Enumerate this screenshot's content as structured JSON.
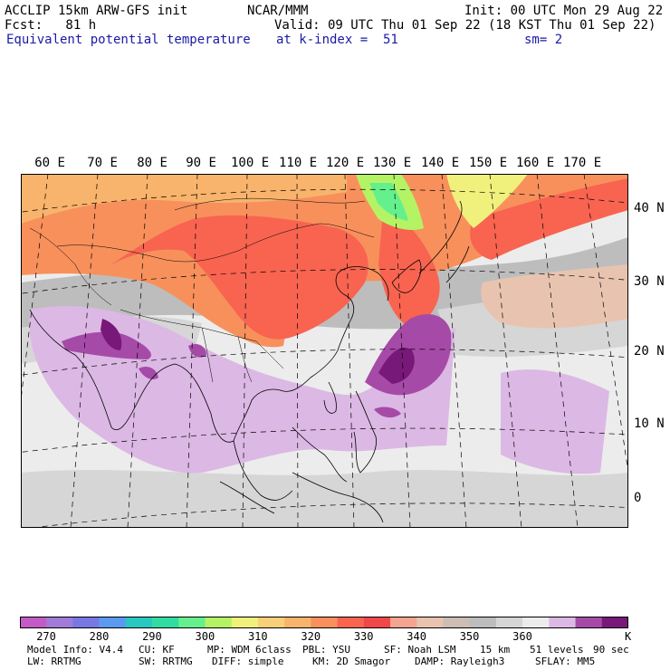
{
  "header": {
    "model": "ACCLIP 15km ARW-GFS init",
    "org": "NCAR/MMM",
    "init": "Init: 00 UTC Mon 29 Aug 22",
    "fcst": "Fcst:   81 h",
    "valid": "Valid: 09 UTC Thu 01 Sep 22 (18 KST Thu 01 Sep 22)",
    "field": "Equivalent potential temperature",
    "level": "at k-index =  51",
    "smooth": "sm= 2"
  },
  "map": {
    "lon_labels": [
      "60 E",
      "70 E",
      "80 E",
      "90 E",
      "100 E",
      "110 E",
      "120 E",
      "130 E",
      "140 E",
      "150 E",
      "160 E",
      "170 E"
    ],
    "lat_labels": [
      "40 N",
      "30 N",
      "20 N",
      "10 N",
      "0"
    ]
  },
  "colorbar": {
    "colors": [
      "#c45ac8",
      "#a07cd8",
      "#7878e4",
      "#5a9af0",
      "#28c8c0",
      "#30dca0",
      "#64f08c",
      "#b4f464",
      "#f0f07c",
      "#f8d078",
      "#f8b46c",
      "#f8905c",
      "#f86450",
      "#f04848",
      "#f4a490",
      "#e8c4b0",
      "#cdbdb3",
      "#bdbdbd",
      "#d6d6d6",
      "#ececec",
      "#dcb8e4",
      "#a64aa8",
      "#781878"
    ],
    "labels": [
      "270",
      "280",
      "290",
      "300",
      "310",
      "320",
      "330",
      "340",
      "350",
      "360"
    ],
    "unit": "K"
  },
  "footer": {
    "line1": [
      "Model Info: V4.4",
      "CU: KF",
      "MP: WDM 6class",
      "PBL: YSU",
      "SF: Noah LSM",
      "15 km",
      "51 levels",
      "90 sec"
    ],
    "line2": [
      "LW: RRTMG",
      "SW: RRTMG",
      "DIFF: simple",
      "KM: 2D Smagor",
      "DAMP: Rayleigh3",
      "SFLAY: MM5"
    ]
  }
}
